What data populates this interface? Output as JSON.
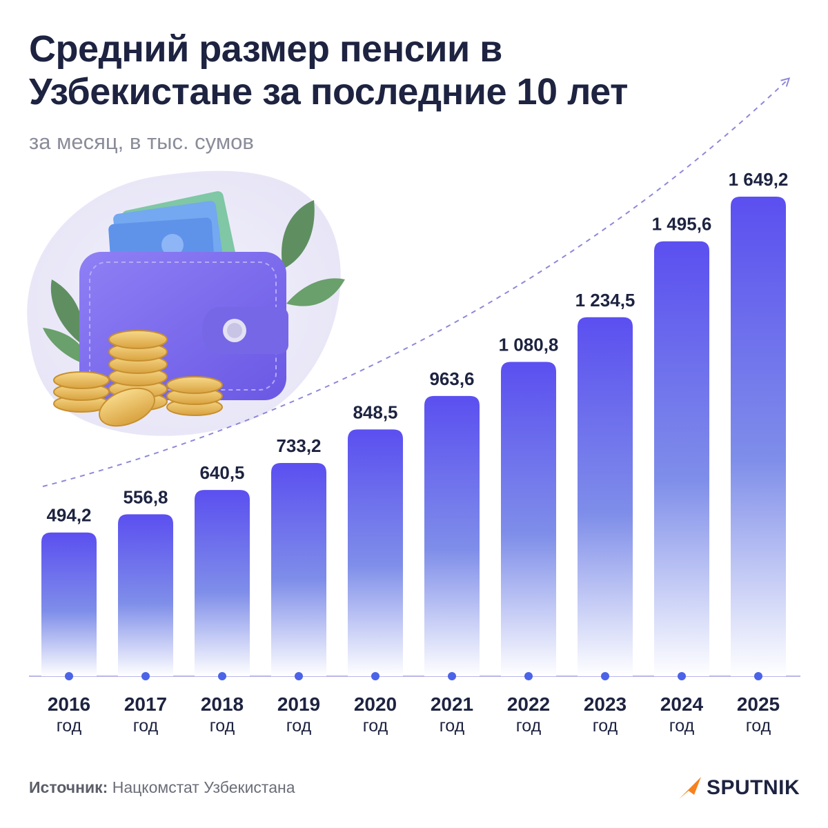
{
  "header": {
    "title": "Средний размер пенсии в Узбекистане за последние 10 лет",
    "subtitle": "за месяц, в тыс. сумов"
  },
  "illustration": {
    "icon": "wallet-with-coins-icon"
  },
  "chart_data": {
    "type": "bar",
    "categories": [
      "2016",
      "2017",
      "2018",
      "2019",
      "2020",
      "2021",
      "2022",
      "2023",
      "2024",
      "2025"
    ],
    "category_suffix": "год",
    "values": [
      494.2,
      556.8,
      640.5,
      733.2,
      848.5,
      963.6,
      1080.8,
      1234.5,
      1495.6,
      1649.2
    ],
    "value_labels": [
      "494,2",
      "556,8",
      "640,5",
      "733,2",
      "848,5",
      "963,6",
      "1 080,8",
      "1 234,5",
      "1 495,6",
      "1 649,2"
    ],
    "trend_arrow": true,
    "ylim": [
      0,
      1649.2
    ],
    "colors": {
      "bar_top": "#5b4ff0",
      "bar_bottom": "#ffffff",
      "axis": "#b9b6e8",
      "dot": "#4a63e8",
      "trend": "#8f88d9"
    }
  },
  "footer": {
    "source_label": "Источник:",
    "source_text": "Нацкомстат Узбекистана",
    "brand": "SPUTNIK",
    "brand_color": "#f5821f"
  }
}
